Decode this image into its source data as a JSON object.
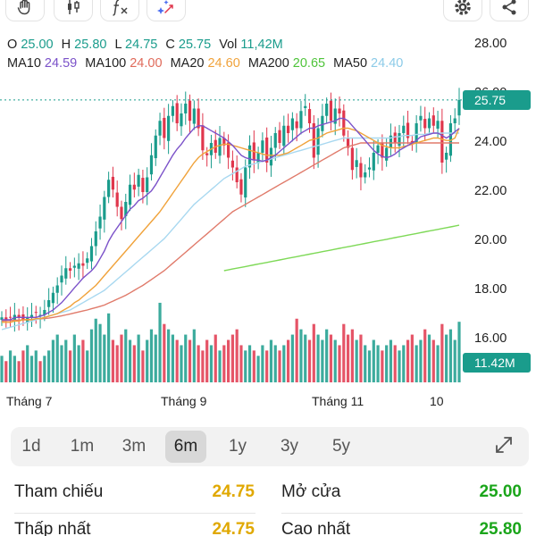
{
  "toolbar": {
    "tools": [
      {
        "name": "hand-tool",
        "icon": "hand-icon"
      },
      {
        "name": "candlestick-tool",
        "icon": "candlestick-icon"
      },
      {
        "name": "formula-tool",
        "icon": "function-icon"
      },
      {
        "name": "magic-tool",
        "icon": "magic-wand-icon"
      },
      {
        "name": "settings-button",
        "icon": "gear-icon"
      },
      {
        "name": "share-button",
        "icon": "share-icon"
      }
    ]
  },
  "ohlc": {
    "open_label": "O",
    "open": "25.00",
    "high_label": "H",
    "high": "25.80",
    "low_label": "L",
    "low": "24.75",
    "close_label": "C",
    "close": "25.75",
    "vol_label": "Vol",
    "vol": "11,42M"
  },
  "ma": {
    "ma10_label": "MA10",
    "ma10": "24.59",
    "ma100_label": "MA100",
    "ma100": "24.00",
    "ma20_label": "MA20",
    "ma20": "24.60",
    "ma200_label": "MA200",
    "ma200": "20.65",
    "ma50_label": "MA50",
    "ma50": "24.40"
  },
  "colors": {
    "up": "#1a9c8c",
    "down": "#e0364c",
    "ma10": "#7b52c9",
    "ma100": "#e07a6a",
    "ma20": "#f0a23a",
    "ma200": "#7ed957",
    "ma50": "#a8d8f0",
    "value_yellow": "#e0a800",
    "value_green": "#1aa51a"
  },
  "chart_data": {
    "type": "candlestick",
    "y_ticks": [
      "28.00",
      "26.00",
      "24.00",
      "22.00",
      "20.00",
      "18.00",
      "16.00"
    ],
    "x_ticks": [
      "Tháng 7",
      "Tháng 9",
      "Tháng 11",
      "10"
    ],
    "ylim": [
      16,
      28
    ],
    "last_price": "25.75",
    "last_volume": "11.42M",
    "close": [
      16.9,
      16.8,
      16.9,
      17.0,
      16.9,
      16.8,
      16.9,
      17.0,
      17.1,
      17.0,
      17.2,
      17.6,
      17.9,
      18.2,
      18.6,
      18.9,
      18.8,
      19.0,
      19.1,
      19.0,
      19.3,
      19.8,
      20.4,
      21.0,
      21.8,
      22.5,
      22.1,
      21.4,
      20.9,
      21.6,
      22.3,
      22.1,
      22.7,
      22.0,
      22.6,
      23.5,
      24.3,
      24.9,
      24.2,
      25.1,
      25.5,
      24.8,
      25.2,
      25.6,
      24.9,
      25.4,
      24.6,
      23.7,
      23.5,
      24.0,
      23.6,
      24.2,
      23.9,
      23.4,
      23.0,
      22.4,
      21.9,
      23.0,
      23.9,
      23.3,
      23.6,
      24.1,
      23.2,
      23.8,
      24.4,
      24.0,
      24.7,
      24.4,
      25.0,
      24.6,
      25.3,
      25.5,
      24.8,
      23.4,
      24.6,
      25.1,
      25.6,
      24.9,
      25.4,
      25.2,
      24.3,
      23.8,
      22.9,
      23.3,
      22.6,
      22.8,
      23.0,
      23.6,
      23.9,
      23.4,
      23.8,
      24.3,
      24.0,
      24.4,
      24.7,
      24.2,
      24.0,
      24.8,
      25.1,
      24.6,
      25.0,
      24.7,
      24.9,
      23.2,
      23.6,
      24.8,
      25.0,
      25.75
    ],
    "ma10": [
      16.8,
      16.8,
      16.8,
      16.9,
      16.9,
      16.9,
      16.9,
      16.9,
      16.9,
      16.95,
      17.0,
      17.1,
      17.2,
      17.35,
      17.5,
      17.7,
      17.9,
      18.1,
      18.3,
      18.5,
      18.65,
      18.8,
      19.0,
      19.3,
      19.6,
      20.0,
      20.3,
      20.55,
      20.8,
      21.05,
      21.3,
      21.45,
      21.65,
      21.75,
      21.9,
      22.05,
      22.3,
      22.6,
      22.9,
      23.2,
      23.5,
      23.75,
      23.95,
      24.2,
      24.4,
      24.6,
      24.7,
      24.7,
      24.6,
      24.5,
      24.4,
      24.3,
      24.2,
      24.05,
      23.9,
      23.7,
      23.5,
      23.4,
      23.35,
      23.3,
      23.3,
      23.25,
      23.3,
      23.4,
      23.5,
      23.65,
      23.8,
      23.95,
      24.1,
      24.25,
      24.4,
      24.5,
      24.6,
      24.6,
      24.7,
      24.75,
      24.8,
      24.85,
      24.9,
      25.0,
      25.0,
      24.9,
      24.7,
      24.5,
      24.3,
      24.1,
      23.9,
      23.7,
      23.55,
      23.45,
      23.4,
      23.45,
      23.55,
      23.7,
      23.8,
      23.9,
      24.0,
      24.1,
      24.25,
      24.3,
      24.35,
      24.4,
      24.4,
      24.3,
      24.2,
      24.3,
      24.45,
      24.59
    ],
    "ma20": [
      16.7,
      16.7,
      16.7,
      16.75,
      16.75,
      16.8,
      16.8,
      16.8,
      16.85,
      16.85,
      16.9,
      16.95,
      17.0,
      17.05,
      17.15,
      17.25,
      17.35,
      17.5,
      17.6,
      17.75,
      17.9,
      18.05,
      18.2,
      18.4,
      18.6,
      18.8,
      19.0,
      19.2,
      19.4,
      19.6,
      19.8,
      20.0,
      20.2,
      20.4,
      20.6,
      20.8,
      21.0,
      21.2,
      21.45,
      21.7,
      21.95,
      22.2,
      22.45,
      22.7,
      22.95,
      23.2,
      23.4,
      23.55,
      23.65,
      23.75,
      23.85,
      23.9,
      23.95,
      23.95,
      23.9,
      23.85,
      23.8,
      23.75,
      23.7,
      23.65,
      23.6,
      23.55,
      23.5,
      23.5,
      23.5,
      23.5,
      23.55,
      23.6,
      23.7,
      23.8,
      23.9,
      24.0,
      24.1,
      24.15,
      24.2,
      24.3,
      24.4,
      24.45,
      24.5,
      24.55,
      24.6,
      24.6,
      24.55,
      24.5,
      24.4,
      24.3,
      24.2,
      24.1,
      24.0,
      23.9,
      23.85,
      23.8,
      23.8,
      23.8,
      23.85,
      23.9,
      23.95,
      24.0,
      24.05,
      24.1,
      24.15,
      24.2,
      24.2,
      24.15,
      24.1,
      24.1,
      24.2,
      24.6
    ],
    "ma50": [
      16.4,
      16.45,
      16.5,
      16.55,
      16.6,
      16.65,
      16.7,
      16.75,
      16.8,
      16.85,
      16.9,
      16.95,
      17.0,
      17.05,
      17.1,
      17.15,
      17.2,
      17.3,
      17.4,
      17.5,
      17.6,
      17.7,
      17.8,
      17.9,
      18.0,
      18.15,
      18.3,
      18.45,
      18.6,
      18.75,
      18.9,
      19.05,
      19.2,
      19.35,
      19.5,
      19.65,
      19.8,
      19.95,
      20.1,
      20.3,
      20.5,
      20.7,
      20.9,
      21.1,
      21.3,
      21.5,
      21.65,
      21.8,
      21.95,
      22.1,
      22.25,
      22.4,
      22.55,
      22.65,
      22.75,
      22.85,
      22.95,
      23.05,
      23.1,
      23.15,
      23.2,
      23.25,
      23.3,
      23.35,
      23.4,
      23.45,
      23.5,
      23.55,
      23.6,
      23.65,
      23.7,
      23.75,
      23.8,
      23.85,
      23.9,
      23.95,
      24.0,
      24.05,
      24.1,
      24.15,
      24.2,
      24.2,
      24.2,
      24.2,
      24.2,
      24.2,
      24.2,
      24.2,
      24.2,
      24.2,
      24.2,
      24.2,
      24.25,
      24.25,
      24.3,
      24.3,
      24.3,
      24.35,
      24.35,
      24.35,
      24.4,
      24.4,
      24.4,
      24.4,
      24.4,
      24.4,
      24.4,
      24.4
    ],
    "ma100": [
      16.75,
      16.76,
      16.77,
      16.78,
      16.79,
      16.8,
      16.81,
      16.82,
      16.83,
      16.84,
      16.85,
      16.87,
      16.9,
      16.93,
      16.96,
      17.0,
      17.04,
      17.08,
      17.12,
      17.16,
      17.2,
      17.25,
      17.3,
      17.35,
      17.4,
      17.48,
      17.56,
      17.64,
      17.72,
      17.8,
      17.9,
      18.0,
      18.1,
      18.2,
      18.32,
      18.44,
      18.56,
      18.68,
      18.8,
      18.95,
      19.1,
      19.25,
      19.4,
      19.55,
      19.7,
      19.85,
      20.0,
      20.15,
      20.3,
      20.45,
      20.6,
      20.75,
      20.9,
      21.05,
      21.2,
      21.3,
      21.4,
      21.5,
      21.6,
      21.7,
      21.8,
      21.9,
      22.0,
      22.1,
      22.2,
      22.3,
      22.4,
      22.5,
      22.6,
      22.7,
      22.8,
      22.9,
      23.0,
      23.1,
      23.2,
      23.3,
      23.4,
      23.5,
      23.6,
      23.7,
      23.8,
      23.85,
      23.9,
      23.95,
      24.0,
      24.0,
      24.0,
      24.0,
      24.0,
      24.0,
      24.0,
      24.0,
      24.0,
      24.0,
      24.0,
      24.0,
      24.0,
      24.0,
      24.0,
      24.0,
      24.0,
      24.0,
      24.0,
      24.0,
      24.0,
      24.0,
      24.0,
      24.0
    ],
    "ma200_start_index": 52,
    "ma200_start": 18.8,
    "ma200_end": 20.65,
    "volume_m": [
      5,
      4,
      6,
      5,
      4,
      6,
      7,
      5,
      6,
      4,
      5,
      6,
      8,
      9,
      7,
      8,
      6,
      9,
      7,
      8,
      6,
      10,
      12,
      11,
      9,
      13,
      8,
      7,
      9,
      10,
      8,
      7,
      9,
      6,
      8,
      10,
      9,
      15,
      11,
      10,
      9,
      8,
      7,
      9,
      8,
      10,
      7,
      6,
      8,
      7,
      9,
      6,
      7,
      8,
      9,
      10,
      7,
      6,
      7,
      6,
      5,
      7,
      6,
      8,
      7,
      6,
      7,
      8,
      9,
      12,
      10,
      9,
      8,
      11,
      9,
      8,
      10,
      9,
      8,
      7,
      11,
      9,
      10,
      8,
      9,
      7,
      6,
      8,
      7,
      6,
      7,
      8,
      7,
      6,
      7,
      8,
      9,
      7,
      8,
      10,
      9,
      8,
      7,
      11,
      9,
      10,
      8,
      11.42
    ]
  },
  "range": {
    "options": [
      "1d",
      "1m",
      "3m",
      "6m",
      "1y",
      "3y",
      "5y"
    ],
    "selected": "6m"
  },
  "stats": {
    "ref_label": "Tham chiếu",
    "ref_value": "24.75",
    "open_label": "Mở cửa",
    "open_value": "25.00",
    "low_label": "Thấp nhất",
    "low_value": "24.75",
    "high_label": "Cao nhất",
    "high_value": "25.80"
  }
}
